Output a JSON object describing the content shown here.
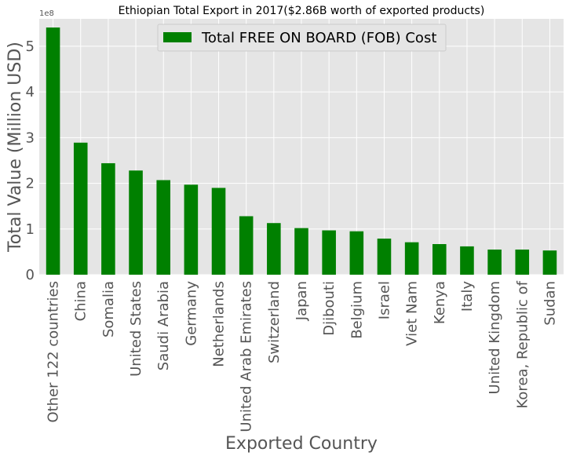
{
  "chart_data": {
    "type": "bar",
    "title": "Ethiopian Total Export in 2017($2.86B worth of exported products)",
    "xlabel": "Exported Country",
    "ylabel": "Total Value (Million USD)",
    "y_offset_label": "1e8",
    "ylim": [
      0,
      5.6
    ],
    "yticks": [
      "0",
      "1",
      "2",
      "3",
      "4",
      "5"
    ],
    "grid": true,
    "legend_position": "top-center",
    "categories": [
      "Other 122 countries",
      "China",
      "Somalia",
      "United States",
      "Saudi Arabia",
      "Germany",
      "Netherlands",
      "United Arab Emirates",
      "Switzerland",
      "Japan",
      "Djibouti",
      "Belgium",
      "Israel",
      "Viet Nam",
      "Kenya",
      "Italy",
      "United Kingdom",
      "Korea, Republic of",
      "Sudan"
    ],
    "series": [
      {
        "name": "Total FREE ON BOARD (FOB) Cost",
        "color": "#008000",
        "values": [
          5.41,
          2.89,
          2.44,
          2.28,
          2.07,
          1.97,
          1.9,
          1.28,
          1.13,
          1.02,
          0.97,
          0.95,
          0.79,
          0.71,
          0.67,
          0.62,
          0.55,
          0.55,
          0.53
        ]
      }
    ]
  }
}
